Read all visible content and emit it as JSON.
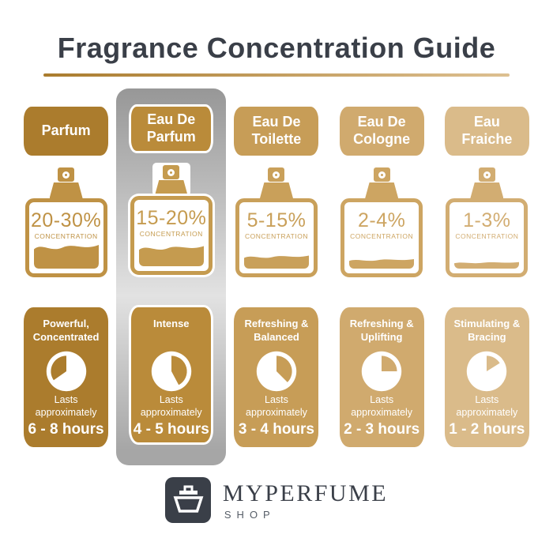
{
  "title": "Fragrance Concentration Guide",
  "colors": {
    "charcoal": "#3a3f48",
    "underline_from": "#aa7c2e",
    "underline_to": "#ddc091",
    "silver_top": "#979797",
    "silver_mid": "#e2e2e2",
    "silver_bottom": "#a6a6a6"
  },
  "columns": [
    {
      "name": "Parfum",
      "concentration": "20-30%",
      "concentration_label": "CONCENTRATION",
      "fill_height": 40,
      "color": "#ab7c2d",
      "bottle_color": "#bf9245",
      "description": "Powerful, Concentrated",
      "lasts_label": "Lasts approximately",
      "duration": "6 - 8 hours",
      "clock": {
        "gold_start": 235,
        "gold_end": 360
      },
      "highlighted": false
    },
    {
      "name": "Eau De Parfum",
      "concentration": "15-20%",
      "concentration_label": "CONCENTRATION",
      "fill_height": 34,
      "color": "#ba8b3a",
      "bottle_color": "#c59b4f",
      "description": "Intense",
      "lasts_label": "Lasts approximately",
      "duration": "4 - 5 hours",
      "clock": {
        "gold_start": 0,
        "gold_end": 152
      },
      "highlighted": true
    },
    {
      "name": "Eau De Toilette",
      "concentration": "5-15%",
      "concentration_label": "CONCENTRATION",
      "fill_height": 22,
      "color": "#c79d57",
      "bottle_color": "#c9a05a",
      "description": "Refreshing & Balanced",
      "lasts_label": "Lasts approximately",
      "duration": "3 - 4 hours",
      "clock": {
        "gold_start": 0,
        "gold_end": 135
      },
      "highlighted": false
    },
    {
      "name": "Eau De Cologne",
      "concentration": "2-4%",
      "concentration_label": "CONCENTRATION",
      "fill_height": 16,
      "color": "#d0aa6e",
      "bottle_color": "#cda562",
      "description": "Refreshing & Uplifting",
      "lasts_label": "Lasts approximately",
      "duration": "2 - 3 hours",
      "clock": {
        "gold_start": 0,
        "gold_end": 90
      },
      "highlighted": false
    },
    {
      "name": "Eau Fraiche",
      "concentration": "1-3%",
      "concentration_label": "CONCENTRATION",
      "fill_height": 11,
      "color": "#dabb8a",
      "bottle_color": "#d2ad72",
      "description": "Stimulating & Bracing",
      "lasts_label": "Lasts approximately",
      "duration": "1 - 2 hours",
      "clock": {
        "gold_start": 0,
        "gold_end": 58
      },
      "highlighted": false
    }
  ],
  "brand": {
    "name": "MYPERFUME",
    "sub": "SHOP"
  }
}
